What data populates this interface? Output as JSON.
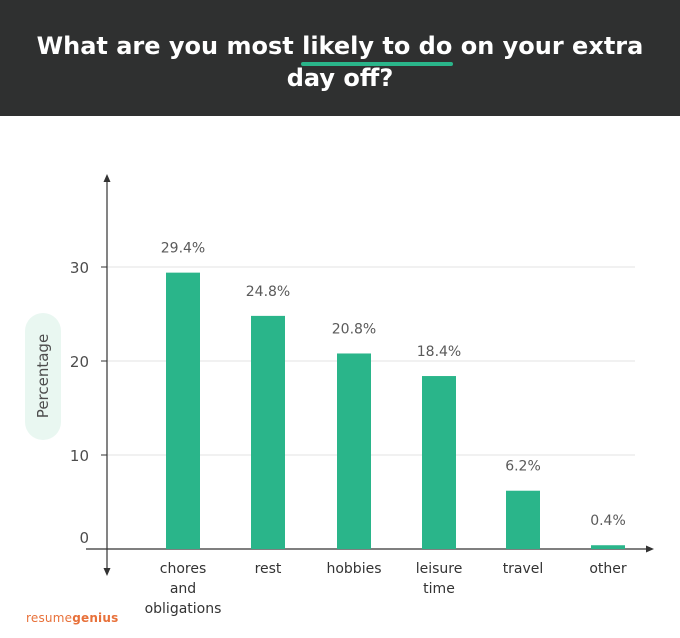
{
  "header": {
    "title_part1": "What are you most ",
    "title_highlight": "likely to do",
    "title_part2": " on your extra day off?"
  },
  "brand": {
    "part1": "resume",
    "part2": "genius"
  },
  "colors": {
    "bar": "#2ab58a",
    "header_bg": "#2f3030",
    "accent": "#2ab58a",
    "brand": "#e8713a"
  },
  "chart_data": {
    "type": "bar",
    "title": "What are you most likely to do on your extra day off?",
    "ylabel": "Percentage",
    "xlabel": "",
    "categories": [
      [
        "chores",
        "and",
        "obligations"
      ],
      [
        "rest"
      ],
      [
        "hobbies"
      ],
      [
        "leisure",
        "time"
      ],
      [
        "travel"
      ],
      [
        "other"
      ]
    ],
    "values": [
      29.4,
      24.8,
      20.8,
      18.4,
      6.2,
      0.4
    ],
    "data_labels": [
      "29.4%",
      "24.8%",
      "20.8%",
      "18.4%",
      "6.2%",
      "0.4%"
    ],
    "yticks": [
      0,
      10,
      20,
      30
    ],
    "ylim": [
      0,
      30
    ],
    "grid": true
  }
}
